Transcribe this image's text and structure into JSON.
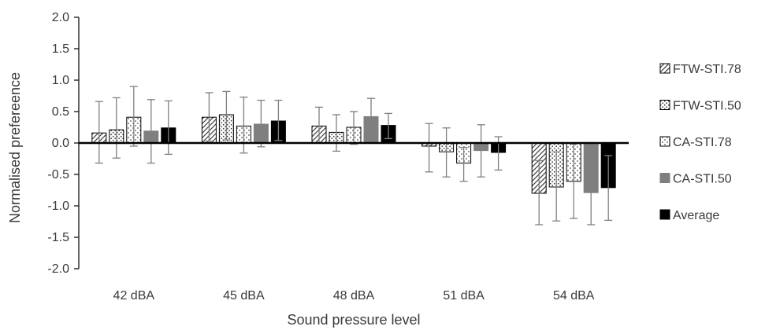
{
  "chart_data": {
    "type": "bar",
    "xlabel": "Sound pressure level",
    "ylabel": "Normalised prefereence",
    "ylim": [
      -2.0,
      2.0
    ],
    "ytick_step": 0.5,
    "yticks": [
      "2.0",
      "1.5",
      "1.0",
      "0.5",
      "0.0",
      "-0.5",
      "-1.0",
      "-1.5",
      "-2.0"
    ],
    "categories": [
      "42 dBA",
      "45 dBA",
      "48 dBA",
      "51 dBA",
      "54 dBA"
    ],
    "legend_position": "right",
    "grid": false,
    "error_bars": true,
    "series": [
      {
        "name": "FTW-STI.78",
        "pattern": "diagonal-hatch",
        "color": "#404040",
        "values": [
          0.16,
          0.41,
          0.27,
          -0.05,
          -0.8
        ],
        "error_low": [
          -0.32,
          0.03,
          0.0,
          -0.46,
          -1.3
        ],
        "error_high": [
          0.66,
          0.8,
          0.57,
          0.31,
          -0.28
        ]
      },
      {
        "name": "FTW-STI.50",
        "pattern": "dots",
        "color": "#404040",
        "values": [
          0.21,
          0.45,
          0.17,
          -0.14,
          -0.7
        ],
        "error_low": [
          -0.24,
          0.05,
          -0.13,
          -0.54,
          -1.24
        ],
        "error_high": [
          0.72,
          0.82,
          0.45,
          0.24,
          -0.14
        ]
      },
      {
        "name": "CA-STI.78",
        "pattern": "checker",
        "color": "#404040",
        "values": [
          0.41,
          0.27,
          0.25,
          -0.32,
          -0.61
        ],
        "error_low": [
          -0.05,
          -0.16,
          -0.02,
          -0.61,
          -1.2
        ],
        "error_high": [
          0.9,
          0.73,
          0.5,
          -0.07,
          -0.02
        ]
      },
      {
        "name": "CA-STI.50",
        "pattern": "solid",
        "color": "#7f7f7f",
        "values": [
          0.19,
          0.3,
          0.42,
          -0.12,
          -0.79
        ],
        "error_low": [
          -0.32,
          -0.06,
          0.14,
          -0.54,
          -1.3
        ],
        "error_high": [
          0.69,
          0.68,
          0.71,
          0.29,
          -0.27
        ]
      },
      {
        "name": "Average",
        "pattern": "solid",
        "color": "#000000",
        "values": [
          0.24,
          0.35,
          0.28,
          -0.15,
          -0.71
        ],
        "error_low": [
          -0.18,
          0.04,
          0.07,
          -0.43,
          -1.23
        ],
        "error_high": [
          0.67,
          0.68,
          0.47,
          0.1,
          -0.2
        ]
      }
    ]
  }
}
